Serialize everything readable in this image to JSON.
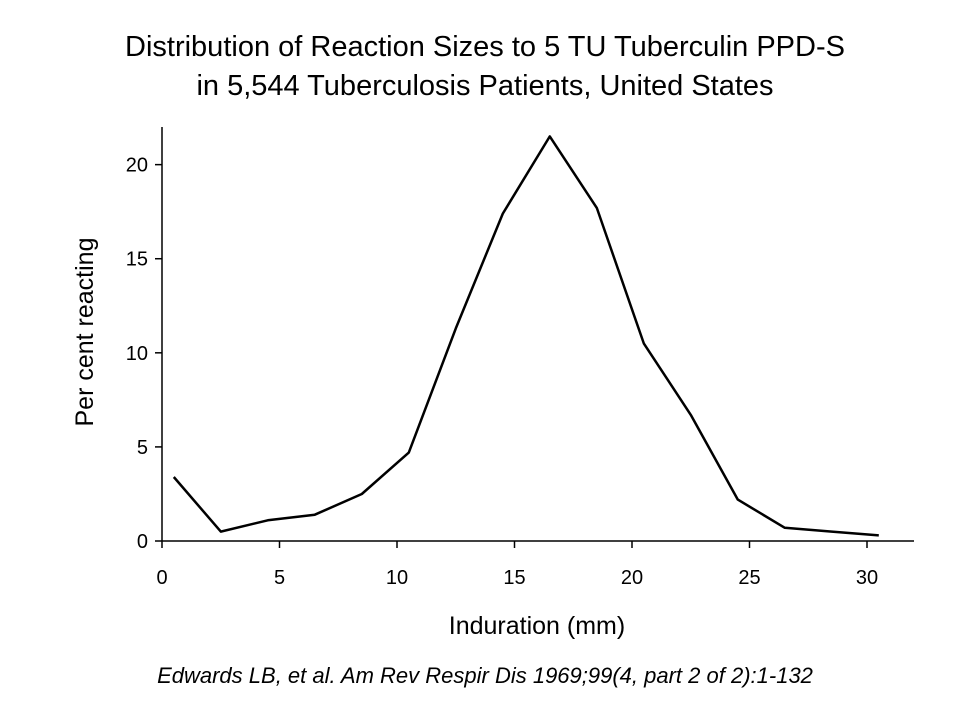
{
  "chart_data": {
    "type": "line",
    "title_line1": "Distribution of Reaction Sizes to 5 TU Tuberculin PPD-S",
    "title_line2": "in 5,544 Tuberculosis Patients, United States",
    "xlabel": "Induration (mm)",
    "ylabel": "Per cent reacting",
    "xlim": [
      0,
      32
    ],
    "ylim": [
      0,
      22
    ],
    "xticks": [
      0,
      5,
      10,
      15,
      20,
      25,
      30
    ],
    "yticks": [
      0,
      5,
      10,
      15,
      20
    ],
    "grid": false,
    "x": [
      0.5,
      2.5,
      4.5,
      6.5,
      8.5,
      10.5,
      12.5,
      14.5,
      16.5,
      18.5,
      20.5,
      22.5,
      24.5,
      26.5,
      28.5,
      30.5
    ],
    "y": [
      3.4,
      0.5,
      1.1,
      1.4,
      2.5,
      4.7,
      11.3,
      17.4,
      21.5,
      17.7,
      10.5,
      6.7,
      2.2,
      0.7,
      0.5,
      0.3
    ],
    "line_color": "#000000"
  },
  "caption": "Edwards LB, et al.  Am Rev Respir Dis 1969;99(4, part 2 of 2):1-132"
}
